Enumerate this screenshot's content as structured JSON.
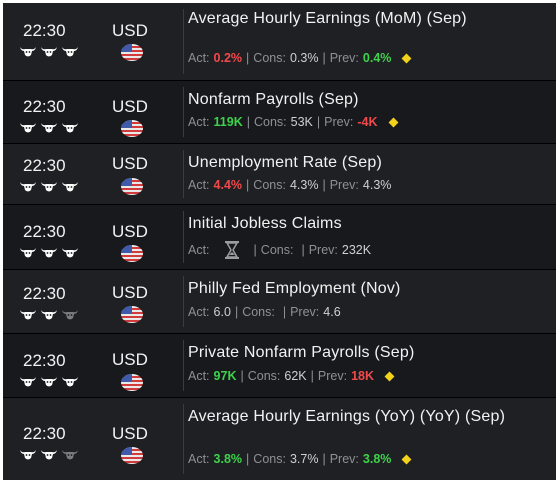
{
  "events": [
    {
      "time": "22:30",
      "currency": "USD",
      "title": "Average Hourly Earnings (MoM) (Sep)",
      "act_label": "Act:",
      "act": "0.2%",
      "cons_label": "Cons:",
      "cons": "0.3%",
      "prev_label": "Prev:",
      "prev": "0.4%",
      "act_color": "red",
      "prev_color": "green",
      "bulls_active": 3,
      "diamond": true
    },
    {
      "time": "22:30",
      "currency": "USD",
      "title": "Nonfarm Payrolls (Sep)",
      "act_label": "Act:",
      "act": "119K",
      "cons_label": "Cons:",
      "cons": "53K",
      "prev_label": "Prev:",
      "prev": "-4K",
      "act_color": "green",
      "prev_color": "red",
      "bulls_active": 3,
      "diamond": true
    },
    {
      "time": "22:30",
      "currency": "USD",
      "title": "Unemployment Rate (Sep)",
      "act_label": "Act:",
      "act": "4.4%",
      "cons_label": "Cons:",
      "cons": "4.3%",
      "prev_label": "Prev:",
      "prev": "4.3%",
      "act_color": "red",
      "prev_color": "plain",
      "bulls_active": 3,
      "diamond": false
    },
    {
      "time": "22:30",
      "currency": "USD",
      "title": "Initial Jobless Claims",
      "act_label": "Act:",
      "act": "",
      "cons_label": "Cons:",
      "cons": "",
      "prev_label": "Prev:",
      "prev": "232K",
      "act_color": "pending",
      "prev_color": "plain",
      "bulls_active": 3,
      "diamond": false
    },
    {
      "time": "22:30",
      "currency": "USD",
      "title": "Philly Fed Employment (Nov)",
      "act_label": "Act:",
      "act": "6.0",
      "cons_label": "Cons:",
      "cons": "",
      "prev_label": "Prev:",
      "prev": "4.6",
      "act_color": "plain",
      "prev_color": "plain",
      "bulls_active": 2,
      "diamond": false
    },
    {
      "time": "22:30",
      "currency": "USD",
      "title": "Private Nonfarm Payrolls (Sep)",
      "act_label": "Act:",
      "act": "97K",
      "cons_label": "Cons:",
      "cons": "62K",
      "prev_label": "Prev:",
      "prev": "18K",
      "act_color": "green",
      "prev_color": "red",
      "bulls_active": 3,
      "diamond": true
    },
    {
      "time": "22:30",
      "currency": "USD",
      "title": "Average Hourly Earnings (YoY) (YoY) (Sep)",
      "act_label": "Act:",
      "act": "3.8%",
      "cons_label": "Cons:",
      "cons": "3.7%",
      "prev_label": "Prev:",
      "prev": "3.8%",
      "act_color": "green",
      "prev_color": "green",
      "bulls_active": 2,
      "diamond": true
    }
  ],
  "icons": {
    "bull": "bull-head-icon",
    "flag": "us-flag-icon",
    "pending": "hourglass-icon",
    "importance": "diamond-icon"
  },
  "colors": {
    "background": "#16171b",
    "alt_row": "#1f2024",
    "text": "#f2f2f2",
    "muted": "#8e9096",
    "red": "#f04a4a",
    "green": "#3dd34b",
    "diamond": "#f2d21b",
    "bull_inactive": "#7a7c82"
  }
}
